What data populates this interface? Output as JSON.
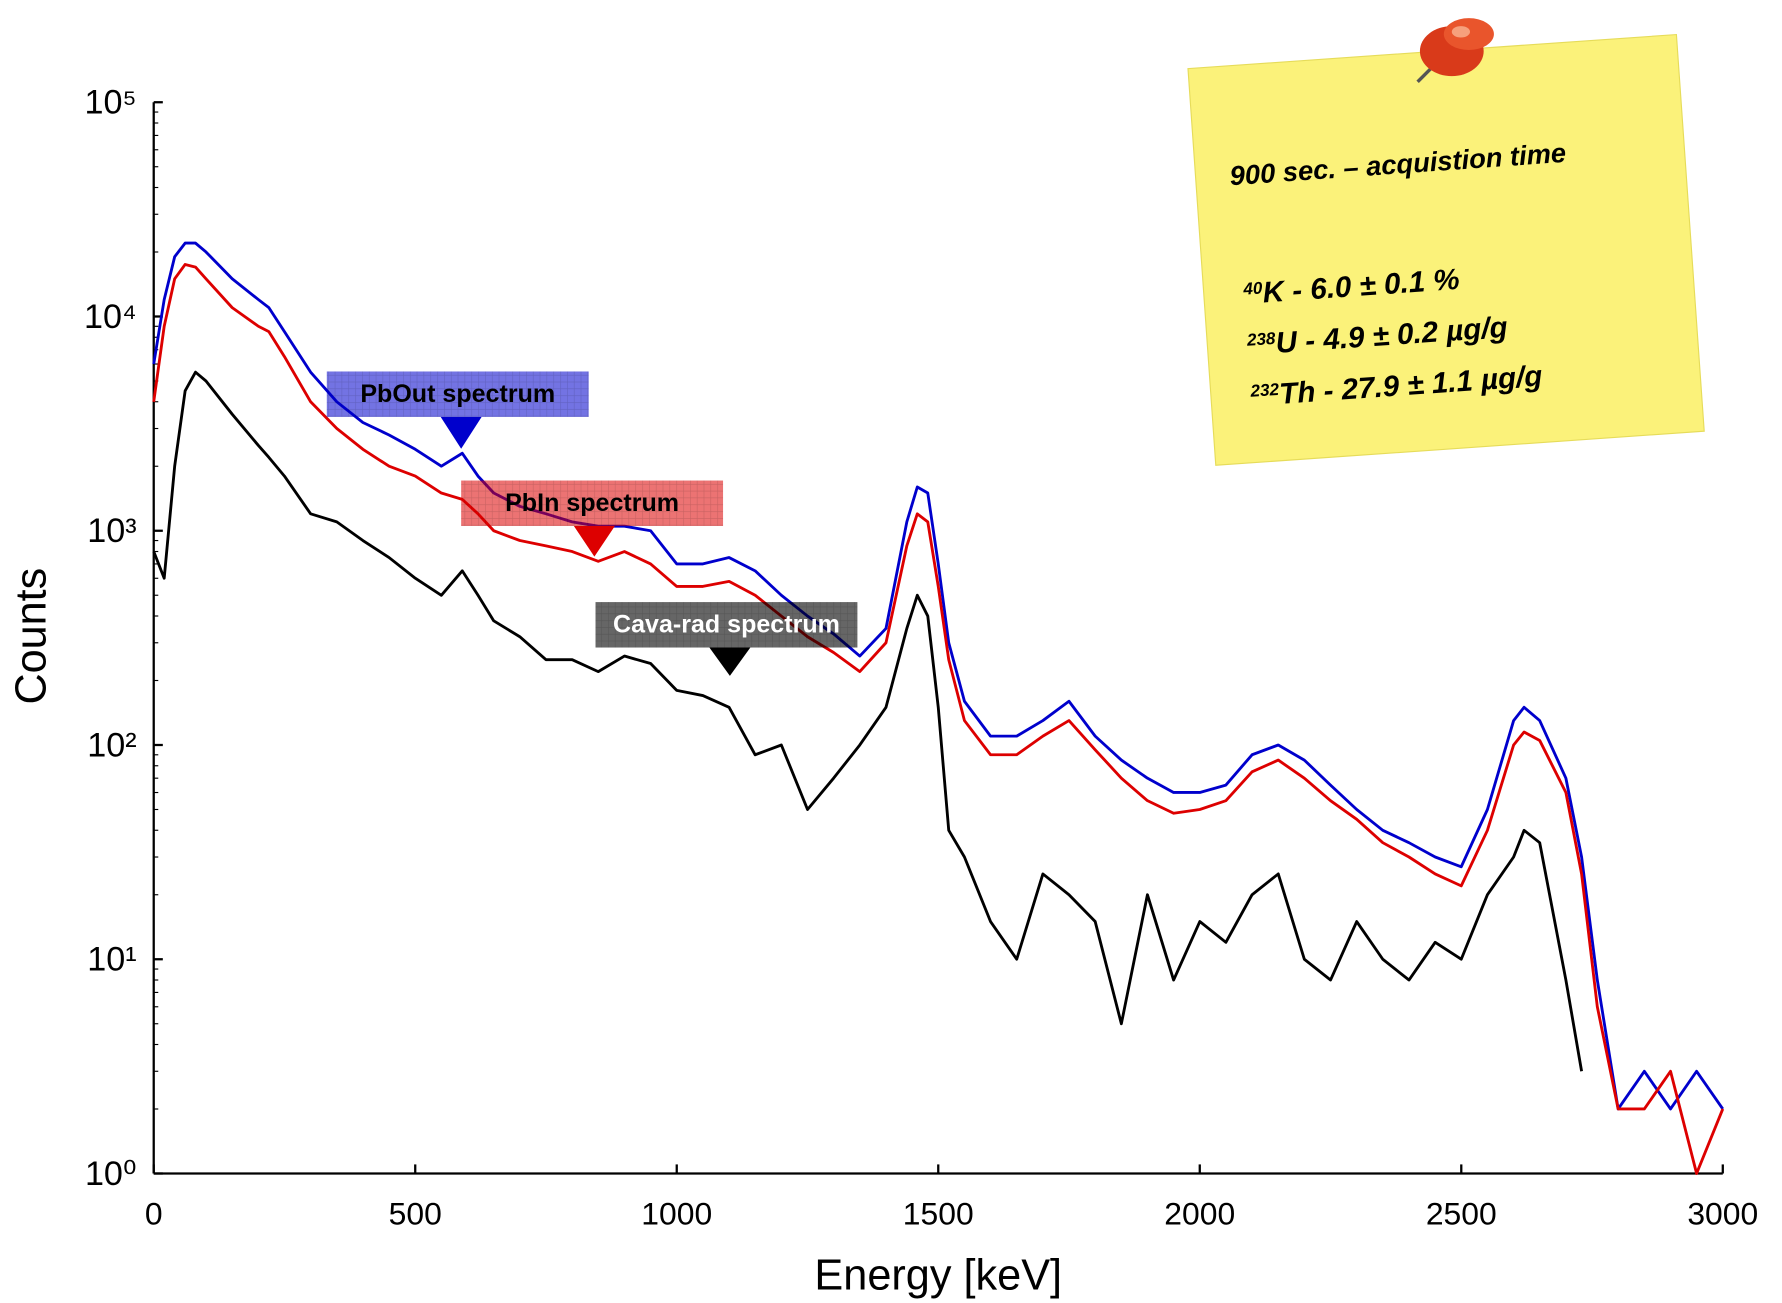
{
  "chart_data": {
    "type": "line",
    "log_scale_y": true,
    "x_label": "Energy [keV]",
    "y_label": "Counts",
    "xlim": [
      0,
      3000
    ],
    "xticks": [
      0,
      500,
      1000,
      1500,
      2000,
      2500,
      3000
    ],
    "ylim": [
      1,
      100000
    ],
    "yticks": [
      {
        "value": 1,
        "label": "10⁰"
      },
      {
        "value": 10,
        "label": "10¹"
      },
      {
        "value": 100,
        "label": "10²"
      },
      {
        "value": 1000,
        "label": "10³"
      },
      {
        "value": 10000,
        "label": "10⁴"
      },
      {
        "value": 100000,
        "label": "10⁵"
      }
    ],
    "x": [
      0,
      20,
      40,
      60,
      80,
      100,
      150,
      200,
      220,
      250,
      300,
      350,
      400,
      450,
      500,
      550,
      590,
      620,
      650,
      700,
      750,
      800,
      850,
      900,
      950,
      1000,
      1050,
      1100,
      1150,
      1200,
      1250,
      1300,
      1350,
      1400,
      1440,
      1460,
      1480,
      1500,
      1520,
      1550,
      1600,
      1650,
      1700,
      1750,
      1800,
      1850,
      1900,
      1950,
      2000,
      2050,
      2100,
      2150,
      2200,
      2250,
      2300,
      2350,
      2400,
      2450,
      2500,
      2550,
      2600,
      2620,
      2650,
      2700,
      2730,
      2760,
      2800,
      2850,
      2900,
      2950,
      3000
    ],
    "series": [
      {
        "name": "PbOut spectrum",
        "color": "#0000cc",
        "values": [
          6000,
          12000,
          19000,
          22000,
          22000,
          20000,
          15000,
          12000,
          11000,
          8500,
          5500,
          4000,
          3200,
          2800,
          2400,
          2000,
          2300,
          1800,
          1500,
          1300,
          1200,
          1100,
          1050,
          1050,
          1000,
          700,
          700,
          750,
          650,
          500,
          400,
          330,
          260,
          350,
          1100,
          1600,
          1500,
          700,
          300,
          160,
          110,
          110,
          130,
          160,
          110,
          85,
          70,
          60,
          60,
          65,
          90,
          100,
          85,
          65,
          50,
          40,
          35,
          30,
          27,
          50,
          130,
          150,
          130,
          70,
          30,
          8,
          2,
          3,
          2,
          3,
          2
        ]
      },
      {
        "name": "PbIn spectrum",
        "color": "#dd0000",
        "values": [
          4000,
          9000,
          15000,
          17500,
          17000,
          15000,
          11000,
          9000,
          8500,
          6500,
          4000,
          3000,
          2400,
          2000,
          1800,
          1500,
          1400,
          1200,
          1000,
          900,
          850,
          800,
          720,
          800,
          700,
          550,
          550,
          580,
          500,
          400,
          320,
          270,
          220,
          300,
          850,
          1200,
          1100,
          550,
          250,
          130,
          90,
          90,
          110,
          130,
          95,
          70,
          55,
          48,
          50,
          55,
          75,
          85,
          70,
          55,
          45,
          35,
          30,
          25,
          22,
          40,
          100,
          115,
          105,
          60,
          25,
          6,
          2,
          2,
          3,
          1,
          2
        ]
      },
      {
        "name": "Cava-rad spectrum",
        "color": "#000000",
        "values": [
          800,
          600,
          2000,
          4500,
          5500,
          5000,
          3500,
          2500,
          2200,
          1800,
          1200,
          1100,
          900,
          750,
          600,
          500,
          650,
          500,
          380,
          320,
          250,
          250,
          220,
          260,
          240,
          180,
          170,
          150,
          90,
          100,
          50,
          70,
          100,
          150,
          350,
          500,
          400,
          150,
          40,
          30,
          15,
          10,
          25,
          20,
          15,
          5,
          20,
          8,
          15,
          12,
          20,
          25,
          10,
          8,
          15,
          10,
          8,
          12,
          10,
          20,
          30,
          40,
          35,
          8,
          3,
          null,
          null,
          null,
          null,
          null,
          null
        ]
      }
    ],
    "note": {
      "title": "900 sec. – acquistion time",
      "lines": [
        {
          "mass": "40",
          "text": "K - 6.0 ± 0.1 %"
        },
        {
          "mass": "238",
          "text": "U - 4.9 ± 0.2 µg/g"
        },
        {
          "mass": "232",
          "text": "Th - 27.9 ± 1.1 µg/g"
        }
      ]
    }
  }
}
